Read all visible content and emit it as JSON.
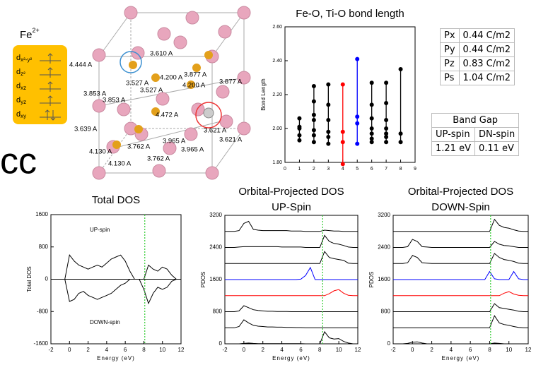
{
  "fe_panel": {
    "element": "Fe",
    "charge": "2+",
    "orbitals": [
      {
        "base": "d",
        "sub": "x²-y²"
      },
      {
        "base": "d",
        "sub": "z²"
      },
      {
        "base": "d",
        "sub": "xz"
      },
      {
        "base": "d",
        "sub": "yz"
      },
      {
        "base": "d",
        "sub": "xy"
      }
    ]
  },
  "side_text": "cc",
  "structure_labels": [
    "4.444 A",
    "3.610 A",
    "3.527 A",
    "4.200 A",
    "3.877 A",
    "4.200 A",
    "3.877 A",
    "3.853 A",
    "3.853 A",
    "3.527 A",
    "4.472 A",
    "3.621 A",
    "3.639 A",
    "3.965 A",
    "3.621 A",
    "4.130 A",
    "3.762 A",
    "3.965 A",
    "4.130 A",
    "3.762 A"
  ],
  "polarization_table": {
    "rows": [
      [
        "Px",
        "0.44 C/m2"
      ],
      [
        "Py",
        "0.44 C/m2"
      ],
      [
        "Pz",
        "0.83 C/m2"
      ],
      [
        "Ps",
        "1.04 C/m2"
      ]
    ]
  },
  "band_gap_table": {
    "title": "Band Gap",
    "columns": [
      "UP-spin",
      "DN-spin"
    ],
    "values": [
      "1.21 eV",
      "0.11 eV"
    ]
  },
  "chart_data": [
    {
      "type": "scatter",
      "title": "Fe-O, Ti-O bond length",
      "ylabel": "Bond Length",
      "xlim": [
        0,
        9
      ],
      "xticks": [
        0,
        1,
        2,
        3,
        4,
        5,
        6,
        7,
        8,
        9
      ],
      "ylim": [
        1.8,
        2.6
      ],
      "yticks": [
        {
          "value": 1.8,
          "label": "1.80"
        },
        {
          "value": 2.0,
          "label": "2.00"
        },
        {
          "value": 2.2,
          "label": "2.20"
        },
        {
          "value": 2.4,
          "label": "2.40"
        },
        {
          "value": 2.6,
          "label": "2.60"
        }
      ],
      "series": [
        {
          "color": "#000000",
          "x": [
            1,
            1,
            1,
            1,
            1
          ],
          "values": [
            1.93,
            1.96,
            2.0,
            2.01,
            2.06
          ]
        },
        {
          "color": "#000000",
          "x": [
            2,
            2,
            2,
            2,
            2,
            2,
            2
          ],
          "values": [
            1.92,
            1.96,
            1.99,
            2.05,
            2.08,
            2.16,
            2.25
          ]
        },
        {
          "color": "#000000",
          "x": [
            3,
            3,
            3,
            3,
            3,
            3
          ],
          "values": [
            1.91,
            1.95,
            1.98,
            2.05,
            2.14,
            2.26
          ]
        },
        {
          "color": "#ff0000",
          "x": [
            4,
            4,
            4,
            4
          ],
          "values": [
            1.79,
            1.92,
            1.98,
            2.26
          ]
        },
        {
          "color": "#0000ff",
          "x": [
            5,
            5,
            5,
            5
          ],
          "values": [
            1.91,
            2.03,
            2.07,
            2.41
          ]
        },
        {
          "color": "#000000",
          "x": [
            6,
            6,
            6,
            6,
            6,
            6,
            6
          ],
          "values": [
            1.92,
            1.94,
            1.97,
            2.0,
            2.06,
            2.14,
            2.27
          ]
        },
        {
          "color": "#000000",
          "x": [
            7,
            7,
            7,
            7,
            7,
            7,
            7
          ],
          "values": [
            1.92,
            1.95,
            1.97,
            2.0,
            2.05,
            2.15,
            2.27
          ]
        },
        {
          "color": "#000000",
          "x": [
            8,
            8,
            8
          ],
          "values": [
            1.92,
            1.97,
            2.35
          ]
        }
      ]
    },
    {
      "type": "line",
      "title": "Total DOS",
      "xlabel": "Energy (eV)",
      "ylabel": "Total DOS",
      "annotations": [
        "UP-spin",
        "DOWN-spin"
      ],
      "xlim": [
        -2,
        12
      ],
      "xticks": [
        -2,
        0,
        2,
        4,
        6,
        8,
        10,
        12
      ],
      "ylim": [
        -1600,
        1600
      ],
      "yticks": [
        -1600,
        -800,
        0,
        800,
        1600
      ],
      "fermi": 8.1,
      "fermi_color": "#33cc33",
      "x": [
        -2,
        -1.5,
        -1,
        -0.5,
        0,
        0.5,
        1,
        1.5,
        2,
        2.5,
        3,
        3.5,
        4,
        4.5,
        5,
        5.5,
        6,
        6.5,
        7,
        7.5,
        8,
        8.5,
        9,
        9.5,
        10,
        10.5,
        11,
        11.5,
        12
      ],
      "series": [
        {
          "color": "#000000",
          "values": [
            0,
            0,
            0,
            0,
            600,
            450,
            350,
            300,
            250,
            300,
            350,
            300,
            400,
            500,
            550,
            600,
            450,
            200,
            0,
            0,
            0,
            350,
            250,
            200,
            300,
            250,
            100,
            0,
            0
          ]
        },
        {
          "color": "#000000",
          "values": [
            0,
            0,
            0,
            0,
            -550,
            -500,
            -350,
            -300,
            -400,
            -450,
            -500,
            -450,
            -400,
            -350,
            -250,
            -150,
            -100,
            0,
            0,
            0,
            -250,
            -600,
            -350,
            -200,
            -250,
            -200,
            -50,
            0,
            0
          ]
        }
      ]
    },
    {
      "type": "line",
      "title": "Orbital-Projected DOS",
      "subtitle": "UP-Spin",
      "xlabel": "Energy (eV)",
      "ylabel": "PDOS",
      "xlim": [
        -2,
        12
      ],
      "xticks": [
        -2,
        0,
        2,
        4,
        6,
        8,
        10,
        12
      ],
      "ylim": [
        0,
        3200
      ],
      "yticks": [
        0,
        800,
        1600,
        2400,
        3200
      ],
      "fermi": 8.3,
      "fermi_color": "#33cc33",
      "x": [
        -2,
        -1.5,
        -1,
        -0.5,
        0,
        0.5,
        1,
        1.5,
        2,
        2.5,
        3,
        3.5,
        4,
        4.5,
        5,
        5.5,
        6,
        6.5,
        7,
        7.5,
        8,
        8.5,
        9,
        9.5,
        10,
        10.5,
        11,
        11.5,
        12
      ],
      "series": [
        {
          "color": "#000000",
          "values": [
            2800,
            2800,
            2800,
            2820,
            3000,
            3050,
            2850,
            2830,
            2820,
            2820,
            2820,
            2820,
            2820,
            2820,
            2810,
            2810,
            2810,
            2800,
            2800,
            2800,
            2800,
            2830,
            2820,
            2810,
            2810,
            2800,
            2800,
            2800,
            2800
          ]
        },
        {
          "color": "#000000",
          "values": [
            2400,
            2400,
            2400,
            2410,
            2420,
            2420,
            2420,
            2420,
            2420,
            2420,
            2420,
            2420,
            2410,
            2410,
            2410,
            2410,
            2410,
            2400,
            2400,
            2400,
            2400,
            2700,
            2550,
            2500,
            2480,
            2450,
            2410,
            2400,
            2400
          ]
        },
        {
          "color": "#000000",
          "values": [
            2000,
            2000,
            2000,
            2000,
            2000,
            2000,
            2000,
            2000,
            2000,
            2000,
            2000,
            2000,
            2000,
            2000,
            2000,
            2000,
            2000,
            2000,
            2000,
            2000,
            2000,
            2300,
            2150,
            2120,
            2100,
            2080,
            2010,
            2000,
            2000
          ]
        },
        {
          "color": "#0000ff",
          "values": [
            1600,
            1600,
            1600,
            1600,
            1600,
            1600,
            1600,
            1600,
            1600,
            1600,
            1600,
            1600,
            1600,
            1600,
            1600,
            1600,
            1610,
            1700,
            1900,
            1600,
            1600,
            1600,
            1600,
            1600,
            1600,
            1600,
            1600,
            1600,
            1600
          ]
        },
        {
          "color": "#ff0000",
          "values": [
            1200,
            1200,
            1200,
            1200,
            1200,
            1200,
            1200,
            1200,
            1200,
            1200,
            1200,
            1200,
            1200,
            1200,
            1200,
            1200,
            1200,
            1200,
            1200,
            1200,
            1200,
            1200,
            1250,
            1320,
            1350,
            1260,
            1210,
            1200,
            1200
          ]
        },
        {
          "color": "#000000",
          "values": [
            800,
            800,
            800,
            820,
            950,
            900,
            850,
            830,
            820,
            810,
            810,
            805,
            805,
            805,
            800,
            800,
            800,
            800,
            800,
            800,
            800,
            800,
            800,
            800,
            800,
            800,
            800,
            800,
            800
          ]
        },
        {
          "color": "#000000",
          "values": [
            400,
            400,
            400,
            430,
            600,
            520,
            460,
            440,
            430,
            420,
            420,
            415,
            415,
            410,
            410,
            405,
            405,
            400,
            400,
            400,
            400,
            400,
            400,
            400,
            400,
            400,
            400,
            400,
            400
          ]
        },
        {
          "color": "#000000",
          "values": [
            0,
            0,
            0,
            0,
            10,
            20,
            10,
            5,
            5,
            5,
            5,
            5,
            5,
            5,
            5,
            5,
            5,
            0,
            0,
            0,
            0,
            300,
            150,
            120,
            130,
            60,
            20,
            0,
            0
          ]
        }
      ]
    },
    {
      "type": "line",
      "title": "Orbital-Projected DOS",
      "subtitle": "DOWN-Spin",
      "xlabel": "Energy (eV)",
      "ylabel": "PDOS",
      "xlim": [
        -2,
        12
      ],
      "xticks": [
        -2,
        0,
        2,
        4,
        6,
        8,
        10,
        12
      ],
      "ylim": [
        0,
        3200
      ],
      "yticks": [
        0,
        800,
        1600,
        2400,
        3200
      ],
      "fermi": 8.1,
      "fermi_color": "#33cc33",
      "x": [
        -2,
        -1.5,
        -1,
        -0.5,
        0,
        0.5,
        1,
        1.5,
        2,
        2.5,
        3,
        3.5,
        4,
        4.5,
        5,
        5.5,
        6,
        6.5,
        7,
        7.5,
        8,
        8.5,
        9,
        9.5,
        10,
        10.5,
        11,
        11.5,
        12
      ],
      "series": [
        {
          "color": "#000000",
          "values": [
            2800,
            2800,
            2800,
            2800,
            2800,
            2800,
            2800,
            2800,
            2800,
            2800,
            2800,
            2800,
            2800,
            2800,
            2800,
            2800,
            2800,
            2800,
            2800,
            2800,
            2800,
            3100,
            2950,
            2900,
            2880,
            2840,
            2810,
            2800,
            2800
          ]
        },
        {
          "color": "#000000",
          "values": [
            2400,
            2400,
            2400,
            2420,
            2600,
            2550,
            2420,
            2410,
            2400,
            2400,
            2400,
            2400,
            2400,
            2400,
            2400,
            2400,
            2400,
            2400,
            2400,
            2400,
            2400,
            2550,
            2480,
            2450,
            2440,
            2420,
            2400,
            2400,
            2400
          ]
        },
        {
          "color": "#000000",
          "values": [
            2000,
            2000,
            2000,
            2020,
            2200,
            2150,
            2020,
            2010,
            2000,
            2000,
            2000,
            2000,
            2000,
            2000,
            2000,
            2000,
            2000,
            2000,
            2000,
            2000,
            2000,
            2250,
            2150,
            2100,
            2080,
            2050,
            2010,
            2000,
            2000
          ]
        },
        {
          "color": "#0000ff",
          "values": [
            1600,
            1600,
            1600,
            1600,
            1600,
            1600,
            1600,
            1600,
            1600,
            1600,
            1600,
            1600,
            1600,
            1600,
            1600,
            1600,
            1600,
            1600,
            1600,
            1600,
            1800,
            1620,
            1600,
            1600,
            1600,
            1800,
            1620,
            1600,
            1600
          ]
        },
        {
          "color": "#ff0000",
          "values": [
            1200,
            1200,
            1200,
            1200,
            1200,
            1200,
            1200,
            1200,
            1200,
            1200,
            1200,
            1200,
            1200,
            1200,
            1200,
            1200,
            1200,
            1200,
            1200,
            1200,
            1200,
            1200,
            1200,
            1260,
            1300,
            1240,
            1210,
            1200,
            1200
          ]
        },
        {
          "color": "#000000",
          "values": [
            800,
            800,
            800,
            800,
            800,
            800,
            800,
            800,
            800,
            800,
            800,
            800,
            800,
            800,
            800,
            800,
            800,
            800,
            800,
            800,
            800,
            1000,
            900,
            880,
            860,
            840,
            810,
            800,
            800
          ]
        },
        {
          "color": "#000000",
          "values": [
            400,
            400,
            400,
            400,
            400,
            400,
            400,
            400,
            400,
            400,
            400,
            400,
            400,
            400,
            400,
            400,
            400,
            400,
            400,
            400,
            400,
            700,
            520,
            480,
            460,
            430,
            410,
            400,
            400
          ]
        },
        {
          "color": "#000000",
          "values": [
            0,
            0,
            0,
            10,
            40,
            50,
            20,
            0,
            0,
            0,
            0,
            0,
            0,
            0,
            0,
            0,
            0,
            0,
            0,
            0,
            0,
            20,
            10,
            0,
            0,
            0,
            0,
            0,
            0
          ]
        }
      ]
    }
  ]
}
